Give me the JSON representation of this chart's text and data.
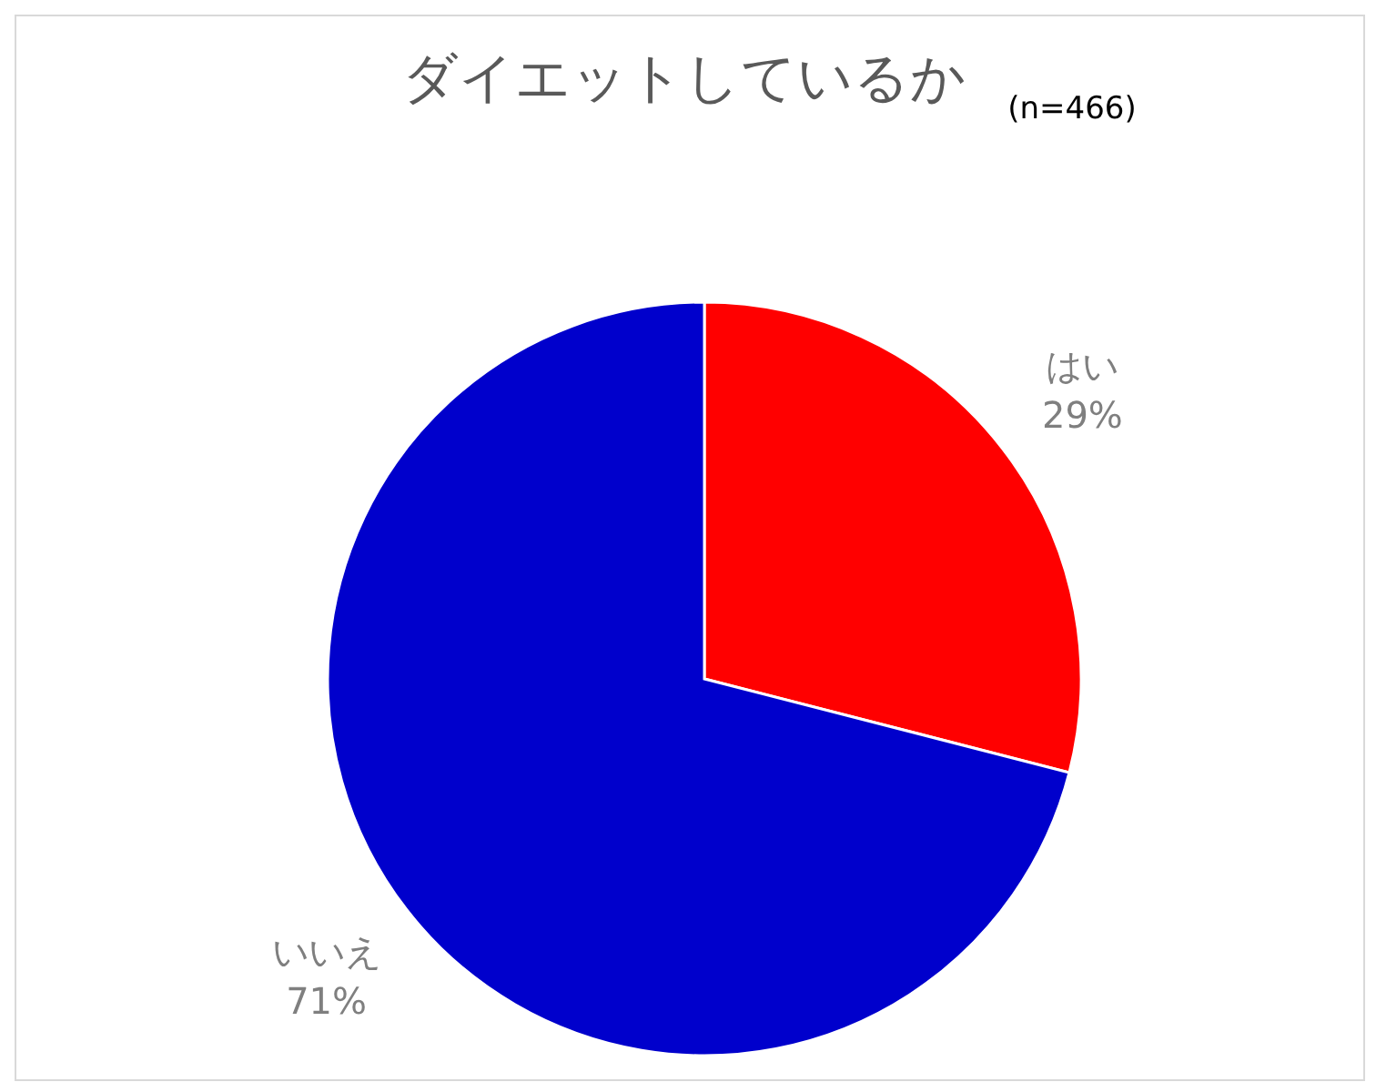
{
  "chart_data": {
    "type": "pie",
    "title": "ダイエットしているか",
    "subtitle": "(n=466)",
    "categories": [
      "はい",
      "いいえ"
    ],
    "values": [
      29,
      71
    ],
    "colors": [
      "#ff0000",
      "#0000cc"
    ],
    "value_labels": [
      "29%",
      "71%"
    ],
    "legend": false
  }
}
